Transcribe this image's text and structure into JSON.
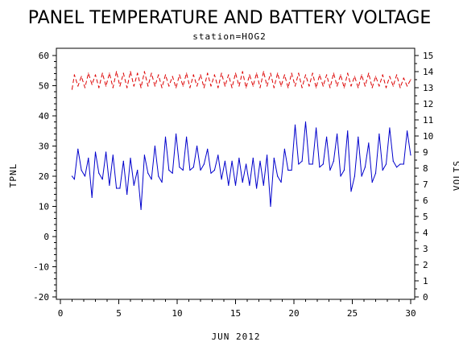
{
  "chart_data": {
    "type": "line",
    "title": "PANEL TEMPERATURE AND BATTERY VOLTAGE",
    "subtitle": "station=HOG2",
    "xlabel": "JUN 2012",
    "ylabel_left": "TPNL",
    "ylabel_right": "VOLTS",
    "xlim": [
      0,
      30
    ],
    "ylim_left": [
      -20,
      60
    ],
    "ylim_right": [
      0,
      15
    ],
    "x_ticks": [
      0,
      5,
      10,
      15,
      20,
      25,
      30
    ],
    "y_ticks_left": [
      -20,
      -10,
      0,
      10,
      20,
      30,
      40,
      50,
      60
    ],
    "y_ticks_right": [
      0,
      1,
      2,
      3,
      4,
      5,
      6,
      7,
      8,
      9,
      10,
      11,
      12,
      13,
      14,
      15
    ],
    "grid": false,
    "series": [
      {
        "axis": "left",
        "color": "#0000cc",
        "style": "solid",
        "x": [
          1.0,
          1.2,
          1.5,
          1.8,
          2.1,
          2.4,
          2.7,
          3.0,
          3.3,
          3.6,
          3.9,
          4.2,
          4.5,
          4.8,
          5.1,
          5.4,
          5.7,
          6.0,
          6.3,
          6.6,
          6.9,
          7.2,
          7.5,
          7.8,
          8.1,
          8.4,
          8.7,
          9.0,
          9.3,
          9.6,
          9.9,
          10.2,
          10.5,
          10.8,
          11.1,
          11.4,
          11.7,
          12.0,
          12.3,
          12.6,
          12.9,
          13.2,
          13.5,
          13.8,
          14.1,
          14.4,
          14.7,
          15.0,
          15.3,
          15.6,
          15.9,
          16.2,
          16.5,
          16.8,
          17.1,
          17.4,
          17.7,
          18.0,
          18.3,
          18.6,
          18.9,
          19.2,
          19.5,
          19.8,
          20.1,
          20.4,
          20.7,
          21.0,
          21.3,
          21.6,
          21.9,
          22.2,
          22.5,
          22.8,
          23.1,
          23.4,
          23.7,
          24.0,
          24.3,
          24.6,
          24.9,
          25.2,
          25.5,
          25.8,
          26.1,
          26.4,
          26.7,
          27.0,
          27.3,
          27.6,
          27.9,
          28.2,
          28.5,
          28.8,
          29.1,
          29.4,
          29.7,
          30.0
        ],
        "values": [
          20,
          19,
          29,
          22,
          20,
          26,
          13,
          28,
          21,
          19,
          28,
          17,
          27,
          16,
          16,
          25,
          14,
          26,
          17,
          22,
          9,
          27,
          21,
          19,
          30,
          20,
          18,
          33,
          22,
          21,
          34,
          23,
          22,
          33,
          22,
          23,
          30,
          22,
          24,
          29,
          21,
          22,
          27,
          19,
          25,
          17,
          25,
          17,
          26,
          18,
          24,
          17,
          26,
          16,
          25,
          17,
          27,
          10,
          26,
          20,
          18,
          29,
          22,
          22,
          37,
          24,
          25,
          38,
          24,
          24,
          36,
          23,
          24,
          33,
          22,
          25,
          34,
          20,
          22,
          35,
          15,
          20,
          33,
          20,
          23,
          31,
          18,
          21,
          34,
          22,
          24,
          36,
          25,
          23,
          24,
          24,
          35,
          27
        ]
      },
      {
        "axis": "right",
        "color": "#dd0000",
        "style": "dashed",
        "x": [
          1.0,
          1.2,
          1.5,
          1.8,
          2.1,
          2.4,
          2.7,
          3.0,
          3.3,
          3.6,
          3.9,
          4.2,
          4.5,
          4.8,
          5.1,
          5.4,
          5.7,
          6.0,
          6.3,
          6.6,
          6.9,
          7.2,
          7.5,
          7.8,
          8.1,
          8.4,
          8.7,
          9.0,
          9.3,
          9.6,
          9.9,
          10.2,
          10.5,
          10.8,
          11.1,
          11.4,
          11.7,
          12.0,
          12.3,
          12.6,
          12.9,
          13.2,
          13.5,
          13.8,
          14.1,
          14.4,
          14.7,
          15.0,
          15.3,
          15.6,
          15.9,
          16.2,
          16.5,
          16.8,
          17.1,
          17.4,
          17.7,
          18.0,
          18.3,
          18.6,
          18.9,
          19.2,
          19.5,
          19.8,
          20.1,
          20.4,
          20.7,
          21.0,
          21.3,
          21.6,
          21.9,
          22.2,
          22.5,
          22.8,
          23.1,
          23.4,
          23.7,
          24.0,
          24.3,
          24.6,
          24.9,
          25.2,
          25.5,
          25.8,
          26.1,
          26.4,
          26.7,
          27.0,
          27.3,
          27.6,
          27.9,
          28.2,
          28.5,
          28.8,
          29.1,
          29.4,
          29.7,
          30.0
        ],
        "values": [
          12.9,
          13.8,
          13.1,
          13.7,
          13.0,
          13.9,
          13.2,
          13.8,
          13.0,
          13.9,
          13.1,
          13.9,
          13.0,
          14.0,
          13.1,
          13.9,
          13.0,
          14.0,
          13.1,
          13.9,
          13.0,
          14.0,
          13.1,
          13.9,
          13.1,
          13.8,
          13.0,
          13.8,
          13.1,
          13.7,
          13.0,
          13.8,
          13.1,
          13.9,
          13.0,
          13.8,
          13.1,
          13.8,
          13.0,
          13.9,
          13.1,
          13.8,
          13.0,
          13.9,
          13.1,
          13.8,
          13.0,
          13.9,
          13.1,
          14.0,
          13.0,
          13.8,
          13.1,
          13.9,
          13.0,
          14.0,
          13.1,
          13.9,
          13.0,
          13.9,
          13.1,
          13.8,
          13.0,
          13.9,
          13.1,
          13.9,
          13.0,
          13.8,
          13.1,
          13.9,
          13.0,
          13.8,
          13.1,
          13.8,
          13.0,
          13.9,
          13.1,
          13.8,
          13.0,
          13.9,
          13.1,
          13.7,
          13.0,
          13.8,
          13.1,
          13.9,
          13.0,
          13.7,
          13.1,
          13.8,
          13.0,
          13.7,
          13.1,
          13.8,
          13.0,
          13.6,
          13.1,
          13.5
        ]
      }
    ]
  }
}
